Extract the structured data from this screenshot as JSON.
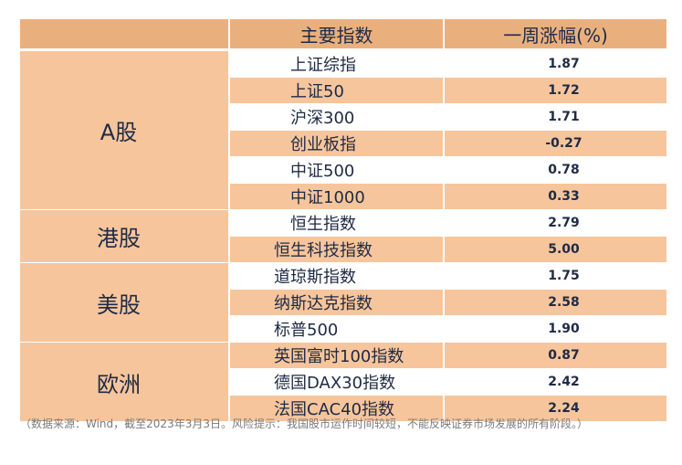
{
  "header": {
    "col_index": "主要指数",
    "col_change": "一周涨幅(%)"
  },
  "regions": [
    {
      "label": "A股",
      "rows": [
        {
          "name": "上证综指",
          "value": "1.87"
        },
        {
          "name": "上证50",
          "value": "1.72"
        },
        {
          "name": "沪深300",
          "value": "1.71"
        },
        {
          "name": "创业板指",
          "value": "-0.27"
        },
        {
          "name": "中证500",
          "value": "0.78"
        },
        {
          "name": "中证1000",
          "value": "0.33"
        }
      ]
    },
    {
      "label": "港股",
      "rows": [
        {
          "name": "恒生指数",
          "value": "2.79"
        },
        {
          "name": "恒生科技指数",
          "value": "5.00"
        }
      ]
    },
    {
      "label": "美股",
      "rows": [
        {
          "name": "道琼斯指数",
          "value": "1.75"
        },
        {
          "name": "纳斯达克指数",
          "value": "2.58"
        },
        {
          "name": "标普500",
          "value": "1.90"
        }
      ]
    },
    {
      "label": "欧洲",
      "rows": [
        {
          "name": "英国富时100指数",
          "value": "0.87"
        },
        {
          "name": "德国DAX30指数",
          "value": "2.42"
        },
        {
          "name": "法国CAC40指数",
          "value": "2.24"
        }
      ]
    }
  ],
  "caption": "（数据来源：Wind，截至2023年3月3日。风险提示：我国股市运作时间较短，不能反映证券市场发展的所有阶段。）"
}
